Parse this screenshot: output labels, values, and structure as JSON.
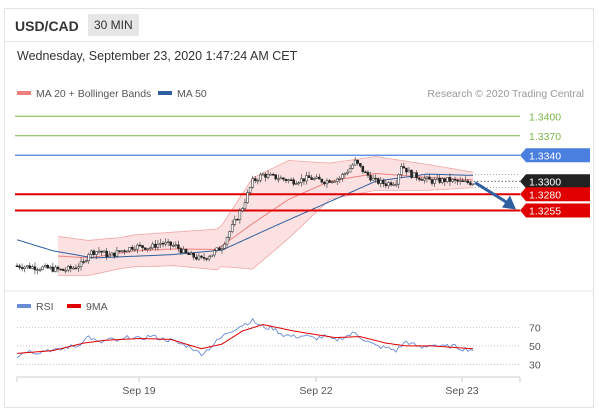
{
  "header": {
    "symbol": "USD/CAD",
    "interval": "30 MIN"
  },
  "datetime": "Wednesday, September 23, 2020 1:47:24 AM CET",
  "colors": {
    "ma20": "#f08080",
    "ma50": "#2f5f9e",
    "rsi": "#6b8cd6",
    "ma9": "#e00000",
    "green": "#7ab648",
    "blue": "#4a7fe0",
    "red": "#e00000",
    "current": "#222222"
  },
  "chart_data": [
    {
      "type": "candlestick",
      "legend": [
        {
          "label": "MA 20 + Bollinger Bands",
          "color": "#f08080"
        },
        {
          "label": "MA 50",
          "color": "#2f5f9e"
        }
      ],
      "watermark": "Research © 2020 Trading Central",
      "x_ticks": [
        "Sep 19",
        "Sep 22",
        "Sep 23"
      ],
      "ylim": [
        1.3145,
        1.3425
      ],
      "levels": [
        {
          "label": "1.3400",
          "value": 1.34,
          "color": "#7ab648",
          "style": "text"
        },
        {
          "label": "1.3370",
          "value": 1.337,
          "color": "#7ab648",
          "style": "text"
        },
        {
          "label": "1.3340",
          "value": 1.334,
          "color": "#4a7fe0",
          "style": "box"
        },
        {
          "label": "1.3300",
          "value": 1.33,
          "color": "#222222",
          "style": "box"
        },
        {
          "label": "1.3280",
          "value": 1.328,
          "color": "#e00000",
          "style": "box"
        },
        {
          "label": "1.3255",
          "value": 1.3255,
          "color": "#e00000",
          "style": "box"
        }
      ],
      "price_anchors": [
        [
          0,
          1.317
        ],
        [
          6,
          1.3168
        ],
        [
          12,
          1.3166
        ],
        [
          18,
          1.3163
        ],
        [
          22,
          1.3167
        ],
        [
          26,
          1.3174
        ],
        [
          28,
          1.319
        ],
        [
          32,
          1.3193
        ],
        [
          36,
          1.3185
        ],
        [
          40,
          1.3192
        ],
        [
          46,
          1.32
        ],
        [
          52,
          1.3198
        ],
        [
          56,
          1.3205
        ],
        [
          62,
          1.32
        ],
        [
          66,
          1.3188
        ],
        [
          72,
          1.318
        ],
        [
          76,
          1.3188
        ],
        [
          80,
          1.32
        ],
        [
          84,
          1.323
        ],
        [
          88,
          1.326
        ],
        [
          92,
          1.33
        ],
        [
          96,
          1.331
        ],
        [
          102,
          1.3305
        ],
        [
          108,
          1.33
        ],
        [
          114,
          1.3305
        ],
        [
          120,
          1.33
        ],
        [
          126,
          1.3305
        ],
        [
          130,
          1.332
        ],
        [
          132,
          1.333
        ],
        [
          136,
          1.3312
        ],
        [
          140,
          1.33
        ],
        [
          144,
          1.3296
        ],
        [
          148,
          1.33
        ],
        [
          150,
          1.3325
        ],
        [
          154,
          1.331
        ],
        [
          158,
          1.3305
        ],
        [
          162,
          1.33
        ],
        [
          168,
          1.3302
        ],
        [
          174,
          1.3298
        ],
        [
          178,
          1.3298
        ]
      ],
      "ma50_anchors": [
        [
          0,
          1.321
        ],
        [
          14,
          1.3193
        ],
        [
          30,
          1.3182
        ],
        [
          60,
          1.3187
        ],
        [
          80,
          1.3194
        ],
        [
          100,
          1.323
        ],
        [
          120,
          1.3265
        ],
        [
          140,
          1.33
        ],
        [
          160,
          1.3311
        ],
        [
          178,
          1.3309
        ]
      ],
      "ma20_anchors": [
        [
          16,
          1.3185
        ],
        [
          28,
          1.3182
        ],
        [
          46,
          1.3193
        ],
        [
          62,
          1.3196
        ],
        [
          78,
          1.3195
        ],
        [
          92,
          1.3235
        ],
        [
          106,
          1.3272
        ],
        [
          122,
          1.33
        ],
        [
          140,
          1.3312
        ],
        [
          160,
          1.3306
        ],
        [
          178,
          1.3302
        ]
      ],
      "bb_width": [
        [
          16,
          0.003
        ],
        [
          40,
          0.0024
        ],
        [
          62,
          0.0026
        ],
        [
          80,
          0.0032
        ],
        [
          92,
          0.007
        ],
        [
          106,
          0.006
        ],
        [
          122,
          0.0028
        ],
        [
          140,
          0.0026
        ],
        [
          160,
          0.002
        ],
        [
          178,
          0.0012
        ]
      ],
      "projection": {
        "from": 1.3298,
        "to": 1.3255
      }
    },
    {
      "type": "line",
      "legend": [
        {
          "label": "RSI",
          "color": "#6b8cd6"
        },
        {
          "label": "9MA",
          "color": "#e00000"
        }
      ],
      "ylim": [
        22,
        80
      ],
      "reference_lines": [
        70,
        50,
        30
      ],
      "tick_labels": [
        "70",
        "50",
        "30"
      ],
      "rsi_anchors": [
        [
          0,
          39
        ],
        [
          4,
          45
        ],
        [
          8,
          43
        ],
        [
          12,
          46
        ],
        [
          16,
          45
        ],
        [
          20,
          49
        ],
        [
          24,
          50
        ],
        [
          26,
          57
        ],
        [
          28,
          60
        ],
        [
          32,
          53
        ],
        [
          36,
          57
        ],
        [
          40,
          55
        ],
        [
          44,
          60
        ],
        [
          48,
          57
        ],
        [
          52,
          61
        ],
        [
          56,
          58
        ],
        [
          60,
          56
        ],
        [
          64,
          52
        ],
        [
          68,
          49
        ],
        [
          70,
          44
        ],
        [
          72,
          42
        ],
        [
          74,
          45
        ],
        [
          78,
          55
        ],
        [
          82,
          64
        ],
        [
          86,
          70
        ],
        [
          90,
          75
        ],
        [
          92,
          77
        ],
        [
          96,
          70
        ],
        [
          100,
          69
        ],
        [
          104,
          62
        ],
        [
          108,
          60
        ],
        [
          112,
          61
        ],
        [
          116,
          58
        ],
        [
          120,
          60
        ],
        [
          124,
          56
        ],
        [
          128,
          60
        ],
        [
          132,
          64
        ],
        [
          136,
          56
        ],
        [
          140,
          50
        ],
        [
          144,
          48
        ],
        [
          148,
          45
        ],
        [
          152,
          55
        ],
        [
          154,
          52
        ],
        [
          158,
          48
        ],
        [
          162,
          52
        ],
        [
          166,
          49
        ],
        [
          170,
          50
        ],
        [
          174,
          47
        ],
        [
          178,
          46
        ]
      ],
      "ma9_anchors": [
        [
          0,
          42
        ],
        [
          14,
          45
        ],
        [
          26,
          53
        ],
        [
          34,
          56
        ],
        [
          48,
          58
        ],
        [
          60,
          57
        ],
        [
          72,
          47
        ],
        [
          80,
          52
        ],
        [
          88,
          66
        ],
        [
          96,
          73
        ],
        [
          108,
          66
        ],
        [
          124,
          59
        ],
        [
          134,
          60
        ],
        [
          144,
          53
        ],
        [
          152,
          50
        ],
        [
          162,
          50
        ],
        [
          178,
          47
        ]
      ]
    }
  ]
}
